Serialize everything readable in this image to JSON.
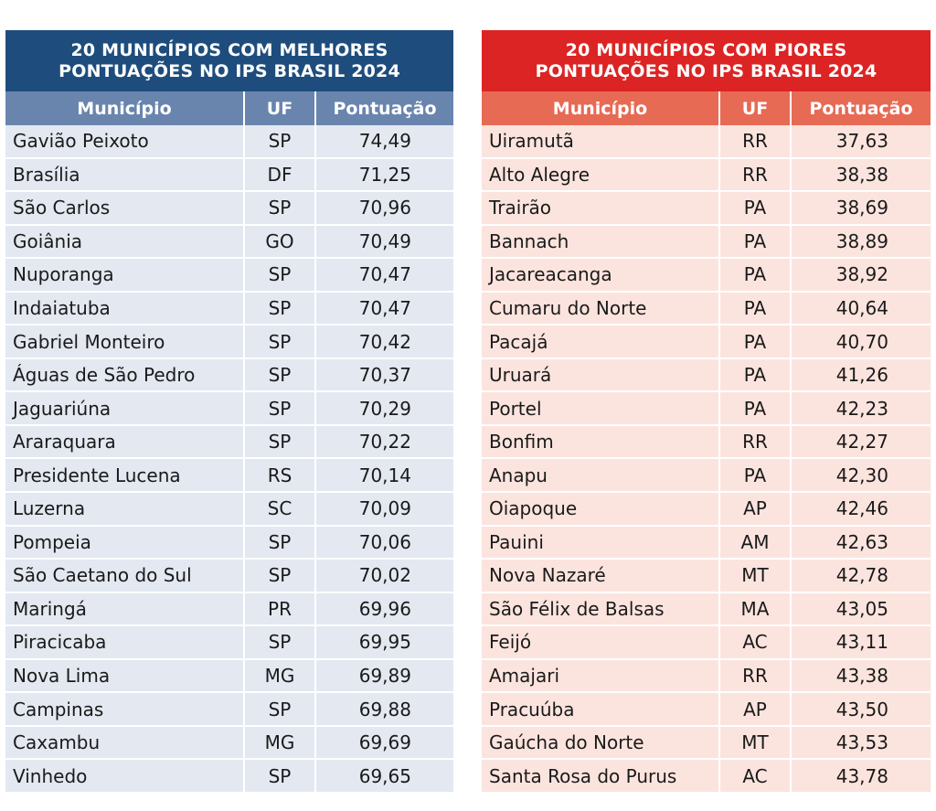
{
  "best": {
    "title_line1": "20 MUNICÍPIOS COM MELHORES",
    "title_line2": "PONTUAÇÕES NO IPS BRASIL 2024",
    "columns": [
      "Município",
      "UF",
      "Pontuação"
    ],
    "rows": [
      [
        "Gavião Peixoto",
        "SP",
        "74,49"
      ],
      [
        "Brasília",
        "DF",
        "71,25"
      ],
      [
        "São Carlos",
        "SP",
        "70,96"
      ],
      [
        "Goiânia",
        "GO",
        "70,49"
      ],
      [
        "Nuporanga",
        "SP",
        "70,47"
      ],
      [
        "Indaiatuba",
        "SP",
        "70,47"
      ],
      [
        "Gabriel Monteiro",
        "SP",
        "70,42"
      ],
      [
        "Águas de São Pedro",
        "SP",
        "70,37"
      ],
      [
        "Jaguariúna",
        "SP",
        "70,29"
      ],
      [
        "Araraquara",
        "SP",
        "70,22"
      ],
      [
        "Presidente Lucena",
        "RS",
        "70,14"
      ],
      [
        "Luzerna",
        "SC",
        "70,09"
      ],
      [
        "Pompeia",
        "SP",
        "70,06"
      ],
      [
        "São Caetano do Sul",
        "SP",
        "70,02"
      ],
      [
        "Maringá",
        "PR",
        "69,96"
      ],
      [
        "Piracicaba",
        "SP",
        "69,95"
      ],
      [
        "Nova Lima",
        "MG",
        "69,89"
      ],
      [
        "Campinas",
        "SP",
        "69,88"
      ],
      [
        "Caxambu",
        "MG",
        "69,69"
      ],
      [
        "Vinhedo",
        "SP",
        "69,65"
      ]
    ]
  },
  "worst": {
    "title_line1": "20 MUNICÍPIOS COM PIORES",
    "title_line2": "PONTUAÇÕES NO IPS BRASIL 2024",
    "columns": [
      "Município",
      "UF",
      "Pontuação"
    ],
    "rows": [
      [
        "Uiramutã",
        "RR",
        "37,63"
      ],
      [
        "Alto Alegre",
        "RR",
        "38,38"
      ],
      [
        "Trairão",
        "PA",
        "38,69"
      ],
      [
        "Bannach",
        "PA",
        "38,89"
      ],
      [
        "Jacareacanga",
        "PA",
        "38,92"
      ],
      [
        "Cumaru do Norte",
        "PA",
        "40,64"
      ],
      [
        "Pacajá",
        "PA",
        "40,70"
      ],
      [
        "Uruará",
        "PA",
        "41,26"
      ],
      [
        "Portel",
        "PA",
        "42,23"
      ],
      [
        "Bonfim",
        "RR",
        "42,27"
      ],
      [
        "Anapu",
        "PA",
        "42,30"
      ],
      [
        "Oiapoque",
        "AP",
        "42,46"
      ],
      [
        "Pauini",
        "AM",
        "42,63"
      ],
      [
        "Nova Nazaré",
        "MT",
        "42,78"
      ],
      [
        "São Félix de Balsas",
        "MA",
        "43,05"
      ],
      [
        "Feijó",
        "AC",
        "43,11"
      ],
      [
        "Amajari",
        "RR",
        "43,38"
      ],
      [
        "Pracuúba",
        "AP",
        "43,50"
      ],
      [
        "Gaúcha do Norte",
        "MT",
        "43,53"
      ],
      [
        "Santa Rosa do Purus",
        "AC",
        "43,78"
      ]
    ]
  },
  "colors": {
    "best_title_bg": "#1e4d7d",
    "best_header_bg": "#6985ae",
    "best_row_bg": "#e3e8f1",
    "worst_title_bg": "#dc2424",
    "worst_header_bg": "#e76a55",
    "worst_row_bg": "#fce4de"
  }
}
